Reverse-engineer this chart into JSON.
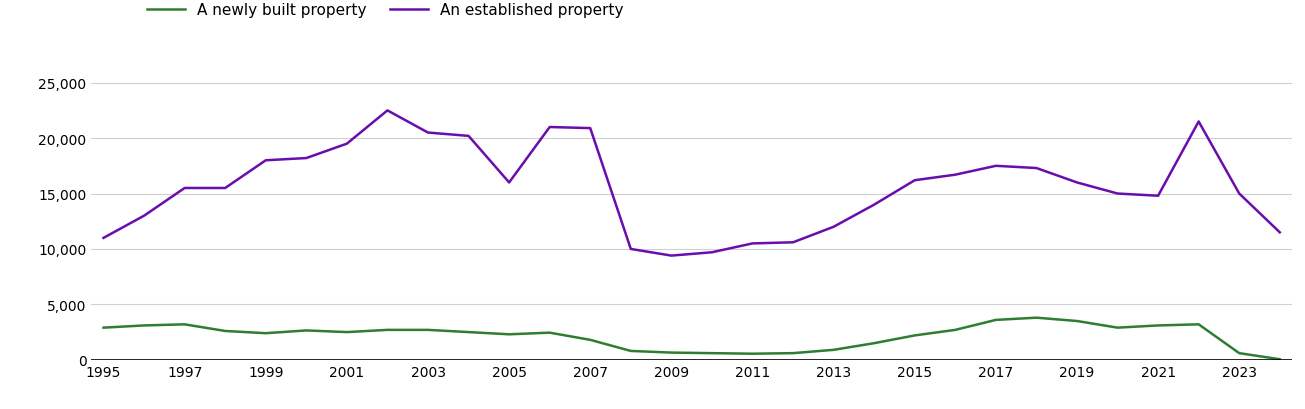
{
  "years": [
    1995,
    1996,
    1997,
    1998,
    1999,
    2000,
    2001,
    2002,
    2003,
    2004,
    2005,
    2006,
    2007,
    2008,
    2009,
    2010,
    2011,
    2012,
    2013,
    2014,
    2015,
    2016,
    2017,
    2018,
    2019,
    2020,
    2021,
    2022,
    2023,
    2024
  ],
  "new_homes": [
    2900,
    3100,
    3200,
    2600,
    2400,
    2650,
    2500,
    2700,
    2700,
    2500,
    2300,
    2450,
    1800,
    800,
    650,
    600,
    550,
    600,
    900,
    1500,
    2200,
    2700,
    3600,
    3800,
    3500,
    2900,
    3100,
    3200,
    600,
    50
  ],
  "established_homes": [
    11000,
    13000,
    15500,
    15500,
    18000,
    18200,
    19500,
    22500,
    20500,
    20200,
    16000,
    21000,
    20900,
    10000,
    9400,
    9700,
    10500,
    10600,
    12000,
    14000,
    16200,
    16700,
    17500,
    17300,
    16000,
    15000,
    14800,
    21500,
    15000,
    11500
  ],
  "new_homes_color": "#2e7d32",
  "established_homes_color": "#6a0dad",
  "new_homes_label": "A newly built property",
  "established_homes_label": "An established property",
  "ylim": [
    0,
    27000
  ],
  "yticks": [
    0,
    5000,
    10000,
    15000,
    20000,
    25000
  ],
  "background_color": "#ffffff",
  "grid_color": "#d0d0d0",
  "legend_fontsize": 11,
  "tick_fontsize": 10
}
